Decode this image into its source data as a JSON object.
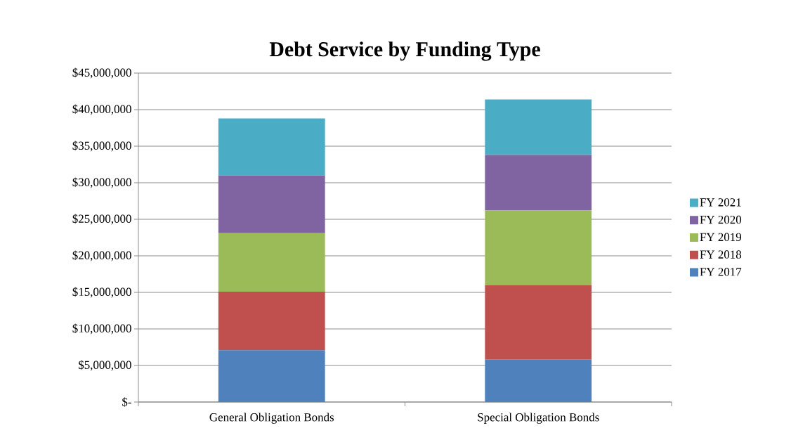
{
  "chart_data": {
    "type": "bar",
    "title": "Debt Service by Funding Type",
    "stacked": true,
    "categories": [
      "General Obligation Bonds",
      "Special Obligation Bonds"
    ],
    "series": [
      {
        "name": "FY 2017",
        "color": "#4f81bd",
        "values": [
          7100000,
          5800000
        ]
      },
      {
        "name": "FY 2018",
        "color": "#c0504d",
        "values": [
          8000000,
          10200000
        ]
      },
      {
        "name": "FY 2019",
        "color": "#9bbb59",
        "values": [
          8000000,
          10200000
        ]
      },
      {
        "name": "FY 2020",
        "color": "#8064a2",
        "values": [
          7900000,
          7600000
        ]
      },
      {
        "name": "FY 2021",
        "color": "#4bacc6",
        "values": [
          7800000,
          7600000
        ]
      }
    ],
    "ylim": [
      0,
      45000000
    ],
    "yticks": [
      {
        "value": 0,
        "label": "$-"
      },
      {
        "value": 5000000,
        "label": "$5,000,000"
      },
      {
        "value": 10000000,
        "label": "$10,000,000"
      },
      {
        "value": 15000000,
        "label": "$15,000,000"
      },
      {
        "value": 20000000,
        "label": "$20,000,000"
      },
      {
        "value": 25000000,
        "label": "$25,000,000"
      },
      {
        "value": 30000000,
        "label": "$30,000,000"
      },
      {
        "value": 35000000,
        "label": "$35,000,000"
      },
      {
        "value": 40000000,
        "label": "$40,000,000"
      },
      {
        "value": 45000000,
        "label": "$45,000,000"
      }
    ],
    "grid": "y",
    "legend": "right"
  }
}
